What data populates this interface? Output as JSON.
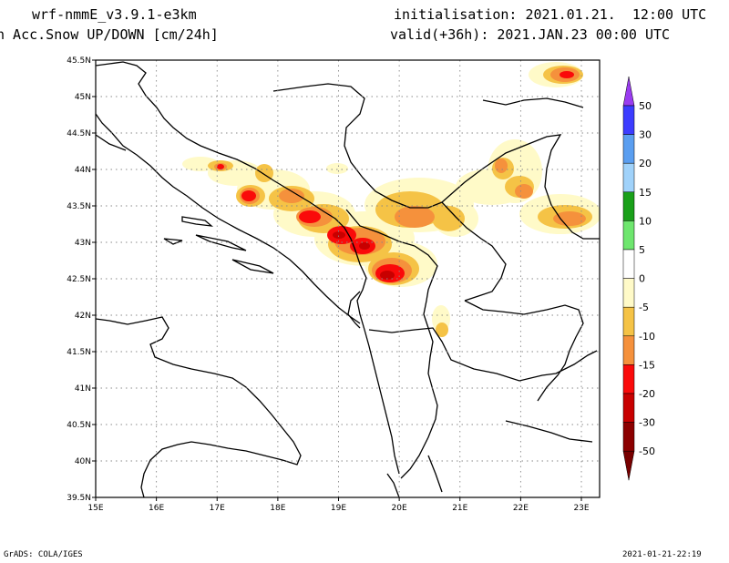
{
  "header": {
    "model": "wrf-nmmE_v3.9.1-e3km",
    "field": "n Acc.Snow UP/DOWN [cm/24h]",
    "initialisation": "initialisation: 2021.01.21.  12:00 UTC",
    "valid": "valid(+36h): 2021.JAN.23 00:00 UTC"
  },
  "footer": {
    "left": "GrADS: COLA/IGES",
    "right": "2021-01-21-22:19"
  },
  "map": {
    "lat_labels": [
      "45.5N",
      "45N",
      "44.5N",
      "44N",
      "43.5N",
      "43N",
      "42.5N",
      "42N",
      "41.5N",
      "41N",
      "40.5N",
      "40N",
      "39.5N"
    ],
    "lon_labels": [
      "15E",
      "16E",
      "17E",
      "18E",
      "19E",
      "20E",
      "21E",
      "22E",
      "23E"
    ],
    "lat_range": [
      39.5,
      45.5
    ],
    "lon_range": [
      15.0,
      23.3
    ],
    "grid": true
  },
  "colorbar": {
    "labels": [
      "50",
      "30",
      "20",
      "15",
      "10",
      "5",
      "0",
      "-5",
      "-10",
      "-15",
      "-20",
      "-30",
      "-50"
    ],
    "colors": [
      "#9a3cf0",
      "#3c3cff",
      "#5a9ef0",
      "#a0d2fa",
      "#19a019",
      "#6ee66e",
      "#ffffff",
      "#fffac8",
      "#f5c346",
      "#f5913c",
      "#fa0a0a",
      "#c80000",
      "#8c0000",
      "#780000"
    ]
  },
  "snow_colors": {
    "light": "#fffac8",
    "moderate": "#f5c346",
    "medium": "#f5913c",
    "heavy": "#fa0a0a",
    "extreme": "#c80000"
  }
}
